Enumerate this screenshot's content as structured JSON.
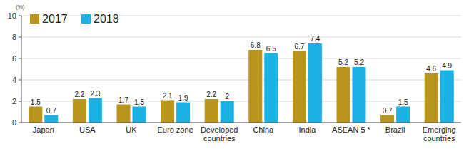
{
  "chart_data": {
    "type": "bar",
    "y_label": "(%)",
    "categories": [
      "Japan",
      "USA",
      "UK",
      "Euro zone",
      "Developed countries",
      "China",
      "India",
      "ASEAN 5 *",
      "Brazil",
      "Emerging countries"
    ],
    "series": [
      {
        "name": "2017",
        "color": "#b8961e",
        "values": [
          1.5,
          2.2,
          1.7,
          2.1,
          2.2,
          6.8,
          6.7,
          5.2,
          0.7,
          4.6
        ]
      },
      {
        "name": "2018",
        "color": "#1bb1e2",
        "values": [
          0.7,
          2.3,
          1.5,
          1.9,
          2.0,
          6.5,
          7.4,
          5.2,
          1.5,
          4.9
        ]
      }
    ],
    "ylim": [
      0,
      10
    ],
    "yticks": [
      0,
      2,
      4,
      6,
      8,
      10
    ],
    "grid": true,
    "legend": "top-left",
    "data_labels": true
  }
}
